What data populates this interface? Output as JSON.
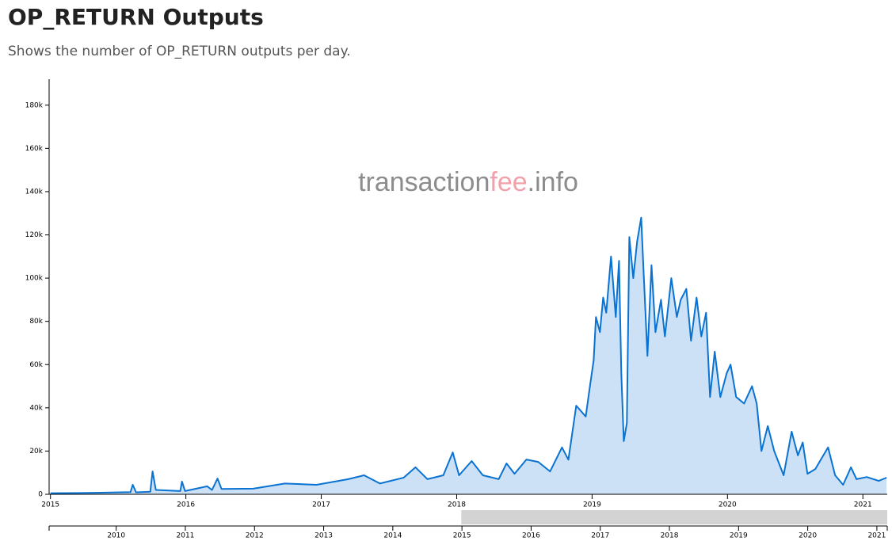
{
  "chart_data": {
    "type": "area",
    "title": "OP_RETURN Outputs",
    "subtitle": "Shows the number of OP_RETURN outputs per day.",
    "watermark": [
      "transaction",
      "fee",
      ".info"
    ],
    "watermark_colors": [
      "#8c8c8c",
      "#f4a0ab",
      "#8c8c8c"
    ],
    "x": [
      2015.0,
      2015.211,
      2015.444,
      2015.591,
      2015.608,
      2015.632,
      2015.737,
      2015.754,
      2015.778,
      2015.959,
      2015.971,
      2015.994,
      2016.158,
      2016.193,
      2016.234,
      2016.263,
      2016.497,
      2016.731,
      2016.965,
      2017.199,
      2017.316,
      2017.433,
      2017.608,
      2017.696,
      2017.784,
      2017.901,
      2017.971,
      2018.018,
      2018.111,
      2018.193,
      2018.31,
      2018.368,
      2018.427,
      2018.515,
      2018.602,
      2018.69,
      2018.778,
      2018.825,
      2018.883,
      2018.953,
      2018.982,
      2019.012,
      2019.029,
      2019.058,
      2019.082,
      2019.105,
      2019.14,
      2019.175,
      2019.199,
      2019.216,
      2019.234,
      2019.257,
      2019.275,
      2019.304,
      2019.333,
      2019.363,
      2019.38,
      2019.409,
      2019.439,
      2019.468,
      2019.509,
      2019.538,
      2019.585,
      2019.626,
      2019.655,
      2019.696,
      2019.731,
      2019.772,
      2019.807,
      2019.842,
      2019.871,
      2019.906,
      2019.947,
      2019.994,
      2020.023,
      2020.064,
      2020.123,
      2020.181,
      2020.216,
      2020.251,
      2020.298,
      2020.345,
      2020.415,
      2020.474,
      2020.52,
      2020.556,
      2020.591,
      2020.649,
      2020.708,
      2020.743,
      2020.795,
      2020.854,
      2020.912,
      2020.953,
      2021.029,
      2021.117,
      2021.175
    ],
    "series": [
      {
        "color": "#0a73d1",
        "fill": "#cde1f6",
        "values": [
          500,
          600,
          800,
          1000,
          4400,
          900,
          1200,
          10600,
          2000,
          1500,
          5900,
          1500,
          3700,
          2000,
          7300,
          2500,
          2600,
          5000,
          4400,
          7000,
          8800,
          5000,
          7700,
          12500,
          7000,
          8800,
          19400,
          8800,
          15400,
          8800,
          7000,
          14300,
          9500,
          16100,
          15000,
          10600,
          21700,
          16000,
          41000,
          36000,
          49000,
          62000,
          82000,
          75000,
          91000,
          84000,
          110000,
          82000,
          108000,
          56000,
          24600,
          33000,
          119000,
          100000,
          117000,
          128000,
          104000,
          64000,
          106000,
          75000,
          90000,
          73000,
          100000,
          82000,
          90000,
          95000,
          71000,
          91000,
          73000,
          84000,
          45000,
          66000,
          45000,
          56000,
          60000,
          45000,
          42000,
          50000,
          42000,
          20000,
          31600,
          20000,
          8800,
          29000,
          18000,
          24000,
          9500,
          11700,
          18000,
          21700,
          8800,
          4400,
          12500,
          7000,
          8000,
          6200,
          7700
        ]
      }
    ],
    "xlim": [
      2014.99,
      2021.18
    ],
    "xticks": [
      2015,
      2016,
      2017,
      2018,
      2019,
      2020,
      2021
    ],
    "ylim": [
      0,
      192000
    ],
    "yticks": [
      0,
      {
        "value": 20000,
        "label": "20k"
      },
      {
        "value": 40000,
        "label": "40k"
      },
      {
        "value": 60000,
        "label": "60k"
      },
      {
        "value": 80000,
        "label": "80k"
      },
      {
        "value": 100000,
        "label": "100k"
      },
      {
        "value": 120000,
        "label": "120k"
      },
      {
        "value": 140000,
        "label": "140k"
      },
      {
        "value": 160000,
        "label": "160k"
      },
      {
        "value": 180000,
        "label": "180k"
      }
    ],
    "navigator": {
      "xlim": [
        2009.03,
        2021.15
      ],
      "xticks": [
        2010,
        2011,
        2012,
        2013,
        2014,
        2015,
        2016,
        2017,
        2018,
        2019,
        2020,
        2021
      ],
      "selection_color": "#d3d3d3"
    }
  }
}
